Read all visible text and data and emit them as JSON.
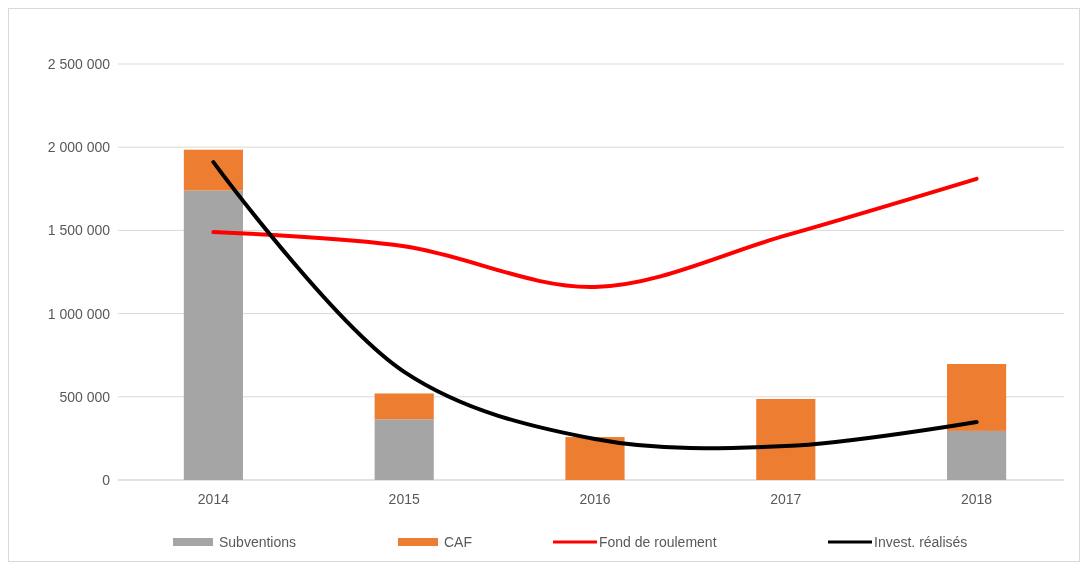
{
  "chart_data": {
    "type": "bar",
    "stacked": true,
    "categories": [
      "2014",
      "2015",
      "2016",
      "2017",
      "2018"
    ],
    "series": [
      {
        "name": "Subventions",
        "color": "#a5a5a5",
        "values": [
          1740000,
          365000,
          0,
          0,
          295000
        ]
      },
      {
        "name": "CAF",
        "color": "#ed7d31",
        "values": [
          245000,
          155000,
          258000,
          487000,
          402000
        ]
      },
      {
        "name": "Fond de roulement",
        "type": "line",
        "color": "#ff0000",
        "values": [
          1490000,
          1405000,
          1160000,
          1470000,
          1810000
        ]
      },
      {
        "name": "Invest. réalisés",
        "type": "line",
        "color": "#000000",
        "values": [
          1910000,
          650000,
          246000,
          204000,
          349000
        ]
      }
    ],
    "ylim": [
      0,
      2500000
    ],
    "yticks": [
      0,
      {
        "value": 500000,
        "label": "500 000"
      },
      {
        "value": 1000000,
        "label": "1 000 000"
      },
      {
        "value": 1500000,
        "label": "1 500 000"
      },
      {
        "value": 2000000,
        "label": "2 000 000"
      },
      {
        "value": 2500000,
        "label": "2 500 000"
      }
    ],
    "grid": "y",
    "legend": "bottom",
    "marker": "none",
    "line_style": "solid"
  }
}
